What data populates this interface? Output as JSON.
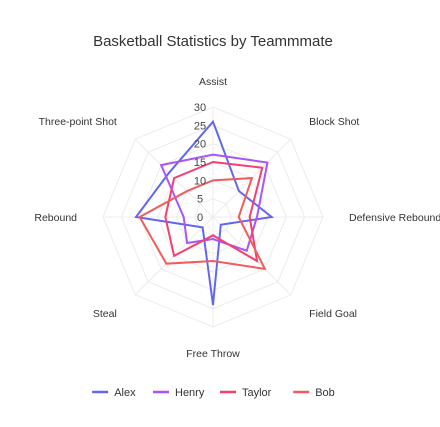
{
  "chart_data": {
    "type": "radar",
    "title": "Basketball Statistics by Teammmate",
    "axes": [
      "Assist",
      "Block Shot",
      "Defensive Rebound",
      "Field Goal",
      "Free Throw",
      "Steal",
      "Rebound",
      "Three-point Shot"
    ],
    "rlim": [
      0,
      30
    ],
    "ticks": [
      "0",
      "5",
      "10",
      "15",
      "20",
      "25",
      "30"
    ],
    "series": [
      {
        "name": "Alex",
        "color": "#6366f1",
        "values": [
          26,
          10,
          16,
          3,
          24,
          4,
          21,
          17
        ]
      },
      {
        "name": "Henry",
        "color": "#a855f7",
        "values": [
          17,
          21,
          12,
          13,
          6,
          10,
          8,
          20
        ]
      },
      {
        "name": "Taylor",
        "color": "#f43f72",
        "values": [
          15,
          19,
          10,
          17,
          5,
          15,
          13,
          15
        ]
      },
      {
        "name": "Bob",
        "color": "#f15b5b",
        "values": [
          10,
          15,
          7,
          20,
          12,
          18,
          20,
          10
        ]
      }
    ],
    "grid": true,
    "legend": "bottom"
  }
}
